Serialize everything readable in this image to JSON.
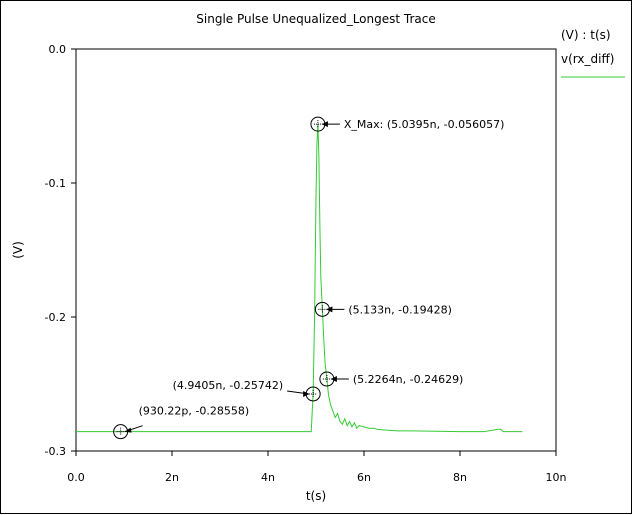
{
  "chart_data": {
    "type": "line",
    "title": "Single Pulse Unequalized_Longest Trace",
    "xlabel": "t(s)",
    "ylabel": "(V)",
    "legend": {
      "header": "(V) : t(s)",
      "entries": [
        "v(rx_diff)"
      ],
      "placement": "right"
    },
    "x_unit": "s",
    "xlim": [
      0,
      10
    ],
    "ylim": [
      -0.3,
      0
    ],
    "x_ticks": [
      {
        "value": 0,
        "label": "0.0"
      },
      {
        "value": 2,
        "label": "2n"
      },
      {
        "value": 4,
        "label": "4n"
      },
      {
        "value": 6,
        "label": "6n"
      },
      {
        "value": 8,
        "label": "8n"
      },
      {
        "value": 10,
        "label": "10n"
      }
    ],
    "y_ticks": [
      {
        "value": 0,
        "label": "0.0"
      },
      {
        "value": -0.1,
        "label": "-0.1"
      },
      {
        "value": -0.2,
        "label": "-0.2"
      },
      {
        "value": -0.3,
        "label": "-0.3"
      }
    ],
    "grid": false,
    "series": [
      {
        "name": "v(rx_diff)",
        "color": "#33cc33",
        "x_scale": "ns",
        "x": [
          0,
          4.9,
          4.9405,
          4.97,
          5.0,
          5.02,
          5.0395,
          5.06,
          5.08,
          5.1,
          5.133,
          5.16,
          5.19,
          5.2264,
          5.26,
          5.3,
          5.35,
          5.4,
          5.45,
          5.5,
          5.55,
          5.6,
          5.65,
          5.7,
          5.75,
          5.8,
          5.85,
          5.9,
          6.0,
          6.1,
          6.2,
          6.3,
          6.5,
          6.7,
          7.0,
          7.5,
          8.0,
          8.5,
          8.8,
          8.85,
          8.9,
          9.3
        ],
        "y": [
          -0.28558,
          -0.28558,
          -0.25742,
          -0.2,
          -0.11,
          -0.07,
          -0.056057,
          -0.08,
          -0.13,
          -0.17,
          -0.19428,
          -0.215,
          -0.235,
          -0.24629,
          -0.258,
          -0.265,
          -0.27,
          -0.275,
          -0.272,
          -0.278,
          -0.28,
          -0.276,
          -0.281,
          -0.278,
          -0.282,
          -0.279,
          -0.283,
          -0.281,
          -0.282,
          -0.283,
          -0.283,
          -0.284,
          -0.2845,
          -0.285,
          -0.285,
          -0.2853,
          -0.2855,
          -0.2855,
          -0.2838,
          -0.2838,
          -0.2855,
          -0.2855
        ]
      }
    ],
    "markers": [
      {
        "x": 0.93022,
        "y": -0.28558,
        "label": "(930.22p, -0.28558)",
        "label_side": "above-right"
      },
      {
        "x": 4.9405,
        "y": -0.25742,
        "label": "(4.9405n, -0.25742)",
        "label_side": "left"
      },
      {
        "x": 5.0395,
        "y": -0.056057,
        "label": "X_Max: (5.0395n, -0.056057)",
        "label_side": "right"
      },
      {
        "x": 5.133,
        "y": -0.19428,
        "label": "(5.133n, -0.19428)",
        "label_side": "right"
      },
      {
        "x": 5.2264,
        "y": -0.24629,
        "label": "(5.2264n, -0.24629)",
        "label_side": "right"
      }
    ]
  }
}
